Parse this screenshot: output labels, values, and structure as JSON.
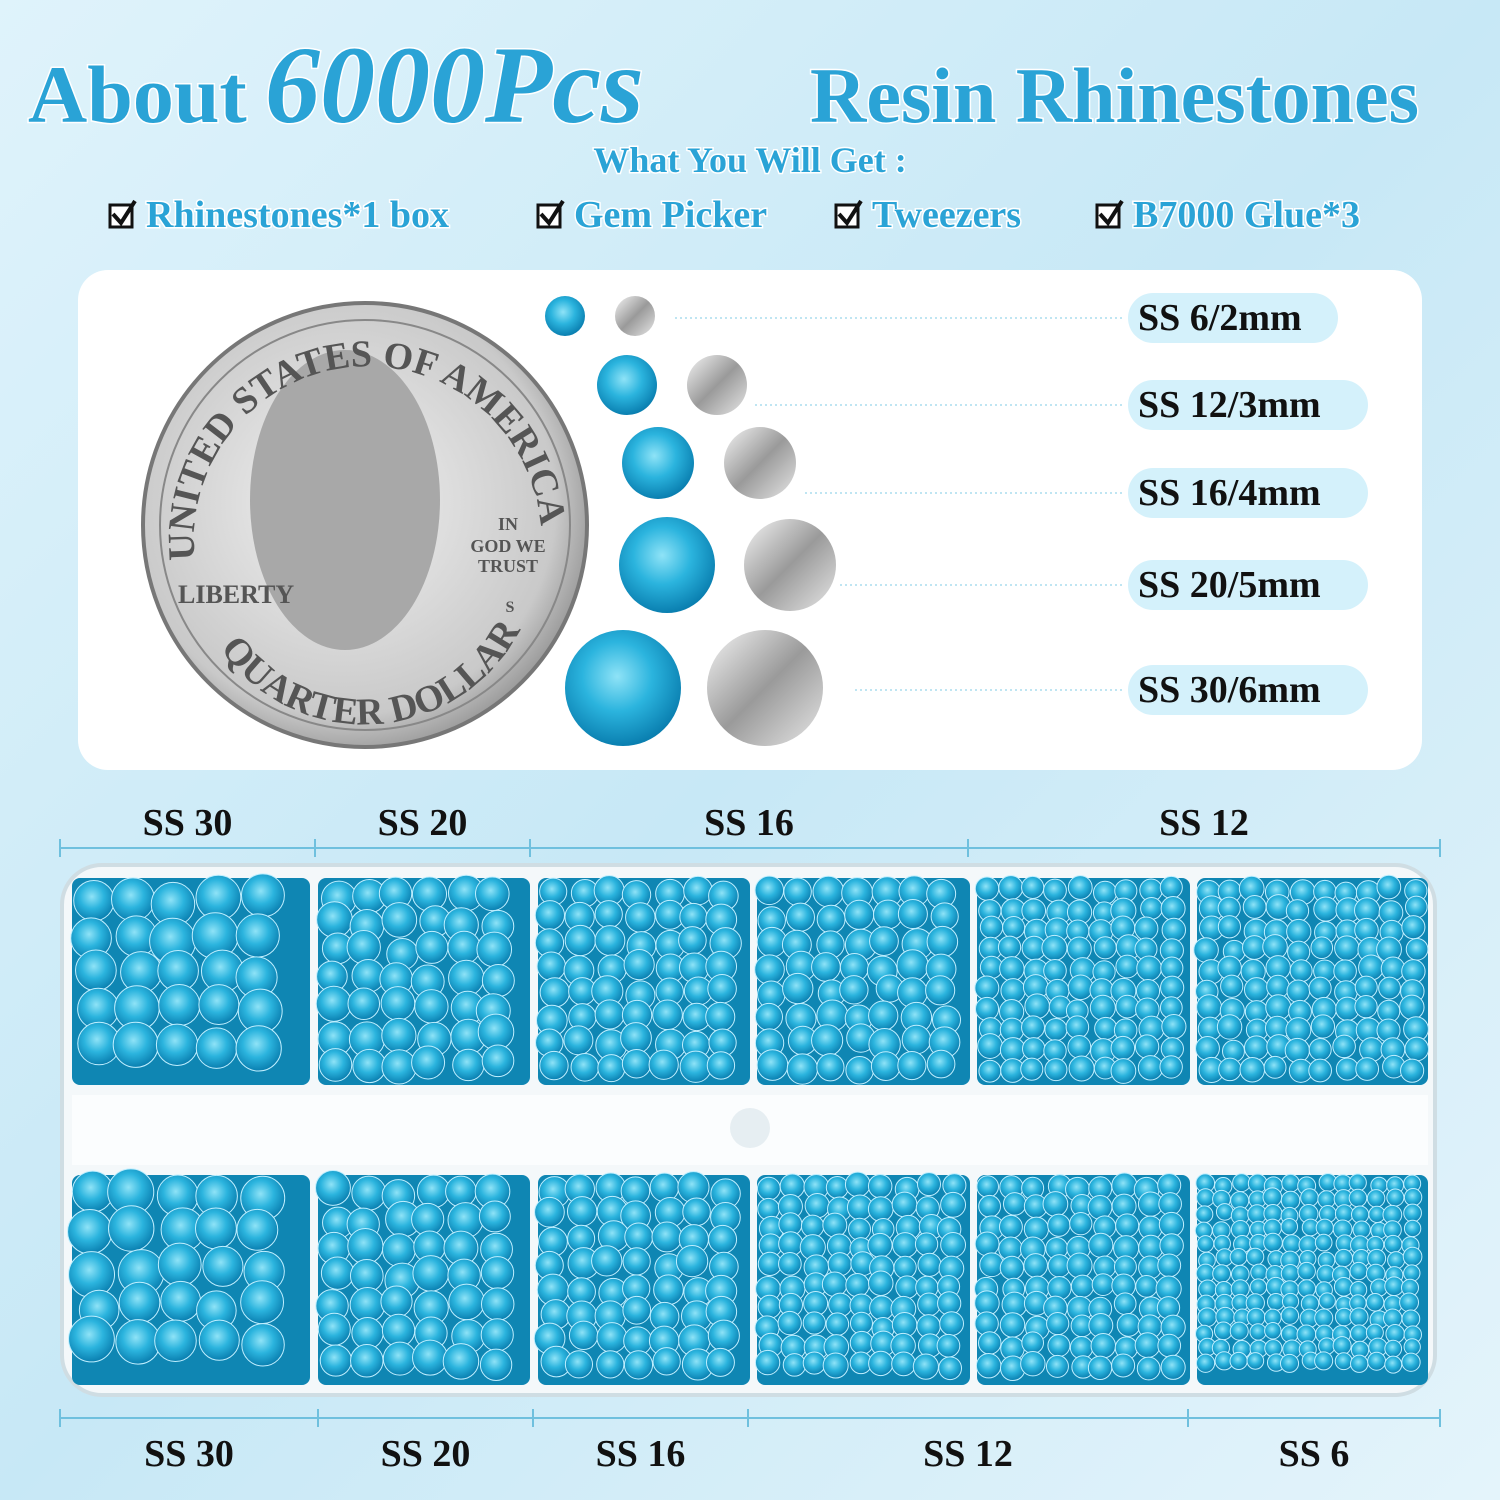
{
  "header": {
    "title_prefix": "About",
    "title_count": "6000Pcs",
    "title_suffix": "Resin Rhinestones",
    "subtitle": "What You Will Get :",
    "items": [
      "Rhinestones*1 box",
      "Gem Picker",
      "Tweezers",
      "B7000 Glue*3"
    ]
  },
  "size_chart": {
    "coin": {
      "top_text": "UNITED STATES OF AMERICA",
      "left_text": "LIBERTY",
      "motto": [
        "IN",
        "GOD WE",
        "TRUST"
      ],
      "mint": "S",
      "bottom_text": "QUARTER DOLLAR"
    },
    "sizes": [
      "SS 6/2mm",
      "SS 12/3mm",
      "SS 16/4mm",
      "SS 20/5mm",
      "SS 30/6mm"
    ]
  },
  "tray": {
    "top_labels": [
      "SS 30",
      "SS 20",
      "SS 16",
      "SS 12"
    ],
    "bottom_labels": [
      "SS 30",
      "SS 20",
      "SS 16",
      "SS 12",
      "SS 6"
    ]
  }
}
